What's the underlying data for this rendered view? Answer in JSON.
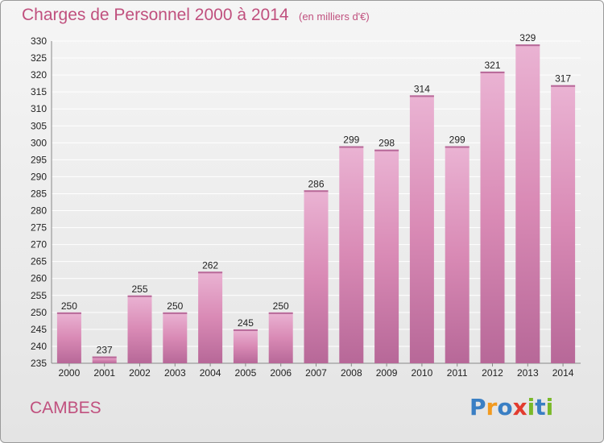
{
  "header": {
    "title": "Charges de Personnel 2000 à 2014",
    "subtitle": "(en milliers d'€)"
  },
  "footer": {
    "place": "CAMBES",
    "brand": "Proxiti",
    "brand_letters": [
      {
        "ch": "P",
        "color": "#3a7fc4"
      },
      {
        "ch": "r",
        "color": "#f29a1f"
      },
      {
        "ch": "o",
        "color": "#3a7fc4"
      },
      {
        "ch": "x",
        "color": "#e23b2e"
      },
      {
        "ch": "i",
        "color": "#7ab929"
      },
      {
        "ch": "t",
        "color": "#3a7fc4"
      },
      {
        "ch": "i",
        "color": "#7ab929"
      }
    ]
  },
  "colors": {
    "bar": "#d98ab5",
    "bar_light": "#eab3d3",
    "bar_dark": "#b76898",
    "grid": "#ffffff",
    "axis_text": "#222222",
    "accent": "#c0507e"
  },
  "chart_data": {
    "type": "bar",
    "categories": [
      "2000",
      "2001",
      "2002",
      "2003",
      "2004",
      "2005",
      "2006",
      "2007",
      "2008",
      "2009",
      "2010",
      "2011",
      "2012",
      "2013",
      "2014"
    ],
    "values": [
      250,
      237,
      255,
      250,
      262,
      245,
      250,
      286,
      299,
      298,
      314,
      299,
      321,
      329,
      317
    ],
    "ylim": [
      235,
      330
    ],
    "ytick_step": 5,
    "grid": true,
    "data_labels": true
  }
}
